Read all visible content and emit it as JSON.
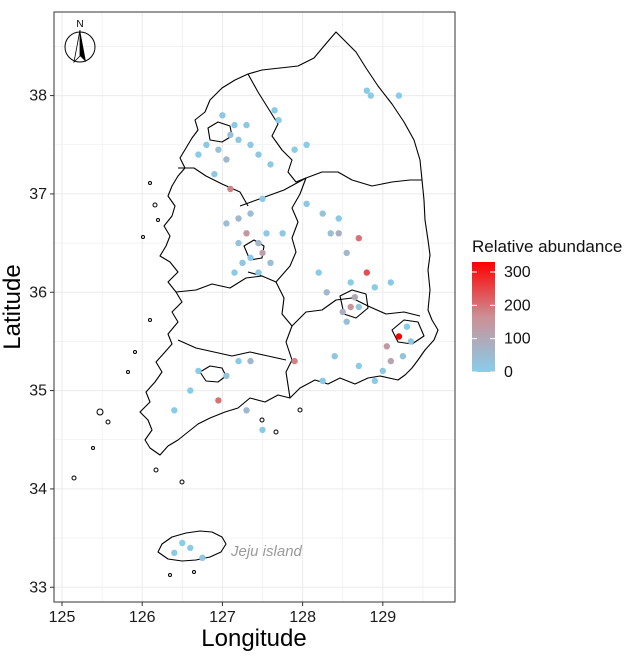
{
  "chart_data": {
    "type": "scatter",
    "xlabel": "Longitude",
    "ylabel": "Latitude",
    "xlim": [
      124.9,
      129.9
    ],
    "ylim": [
      32.85,
      38.85
    ],
    "x_ticks": [
      125,
      126,
      127,
      128,
      129
    ],
    "y_ticks": [
      33,
      34,
      35,
      36,
      37,
      38
    ],
    "grid": true,
    "legend": {
      "title": "Relative abundance",
      "ticks": [
        0,
        100,
        200,
        300
      ],
      "range": [
        0,
        330
      ],
      "color_low": "#87ceeb",
      "color_high": "#ff0000",
      "placement": "right"
    },
    "annotation": "Jeju island",
    "north_arrow_label": "N",
    "colors": {
      "panel_border": "#333333",
      "grid": "#ebebeb",
      "outline": "#000000"
    },
    "points": [
      [
        129.2,
        38.0,
        5
      ],
      [
        128.8,
        38.05,
        10
      ],
      [
        128.85,
        38.0,
        5
      ],
      [
        127.0,
        37.8,
        20
      ],
      [
        127.15,
        37.7,
        10
      ],
      [
        127.3,
        37.7,
        15
      ],
      [
        127.1,
        37.6,
        40
      ],
      [
        127.2,
        37.55,
        20
      ],
      [
        127.35,
        37.5,
        10
      ],
      [
        126.95,
        37.45,
        30
      ],
      [
        127.05,
        37.35,
        60
      ],
      [
        127.45,
        37.4,
        15
      ],
      [
        127.6,
        37.3,
        10
      ],
      [
        127.65,
        37.85,
        5
      ],
      [
        127.7,
        37.75,
        5
      ],
      [
        126.8,
        37.5,
        10
      ],
      [
        126.7,
        37.4,
        5
      ],
      [
        126.9,
        37.2,
        15
      ],
      [
        127.1,
        37.05,
        180
      ],
      [
        127.5,
        36.95,
        10
      ],
      [
        127.9,
        37.45,
        5
      ],
      [
        128.05,
        37.5,
        5
      ],
      [
        127.05,
        36.7,
        40
      ],
      [
        127.2,
        36.75,
        60
      ],
      [
        127.35,
        36.8,
        40
      ],
      [
        127.3,
        36.6,
        150
      ],
      [
        127.45,
        36.5,
        60
      ],
      [
        127.5,
        36.4,
        120
      ],
      [
        127.2,
        36.5,
        30
      ],
      [
        127.35,
        36.35,
        10
      ],
      [
        127.25,
        36.3,
        20
      ],
      [
        127.6,
        36.3,
        40
      ],
      [
        127.15,
        36.2,
        10
      ],
      [
        127.45,
        36.2,
        10
      ],
      [
        127.55,
        36.6,
        10
      ],
      [
        127.75,
        36.6,
        15
      ],
      [
        128.05,
        36.9,
        20
      ],
      [
        128.25,
        36.8,
        30
      ],
      [
        128.45,
        36.75,
        10
      ],
      [
        128.35,
        36.6,
        40
      ],
      [
        128.45,
        36.6,
        80
      ],
      [
        128.7,
        36.55,
        200
      ],
      [
        128.55,
        36.4,
        60
      ],
      [
        128.6,
        36.1,
        5
      ],
      [
        128.65,
        35.95,
        100
      ],
      [
        128.6,
        35.85,
        150
      ],
      [
        128.5,
        35.8,
        80
      ],
      [
        128.7,
        35.85,
        30
      ],
      [
        128.55,
        35.7,
        40
      ],
      [
        128.9,
        36.05,
        5
      ],
      [
        129.1,
        36.1,
        10
      ],
      [
        128.8,
        36.2,
        240
      ],
      [
        128.3,
        36.0,
        60
      ],
      [
        128.2,
        36.2,
        5
      ],
      [
        129.3,
        35.65,
        5
      ],
      [
        129.2,
        35.55,
        330
      ],
      [
        129.05,
        35.45,
        140
      ],
      [
        129.1,
        35.3,
        110
      ],
      [
        129.25,
        35.35,
        30
      ],
      [
        129.0,
        35.2,
        15
      ],
      [
        128.9,
        35.1,
        10
      ],
      [
        129.35,
        35.5,
        20
      ],
      [
        128.4,
        35.35,
        20
      ],
      [
        128.25,
        35.1,
        10
      ],
      [
        128.7,
        35.25,
        5
      ],
      [
        127.9,
        35.3,
        180
      ],
      [
        127.35,
        35.3,
        60
      ],
      [
        127.2,
        35.3,
        10
      ],
      [
        127.05,
        35.15,
        30
      ],
      [
        126.95,
        34.9,
        200
      ],
      [
        127.3,
        34.8,
        60
      ],
      [
        127.5,
        34.6,
        10
      ],
      [
        126.7,
        35.2,
        5
      ],
      [
        126.6,
        35.0,
        5
      ],
      [
        126.4,
        34.8,
        5
      ],
      [
        126.5,
        33.45,
        5
      ],
      [
        126.6,
        33.4,
        10
      ],
      [
        126.75,
        33.3,
        20
      ],
      [
        126.4,
        33.35,
        5
      ]
    ]
  }
}
